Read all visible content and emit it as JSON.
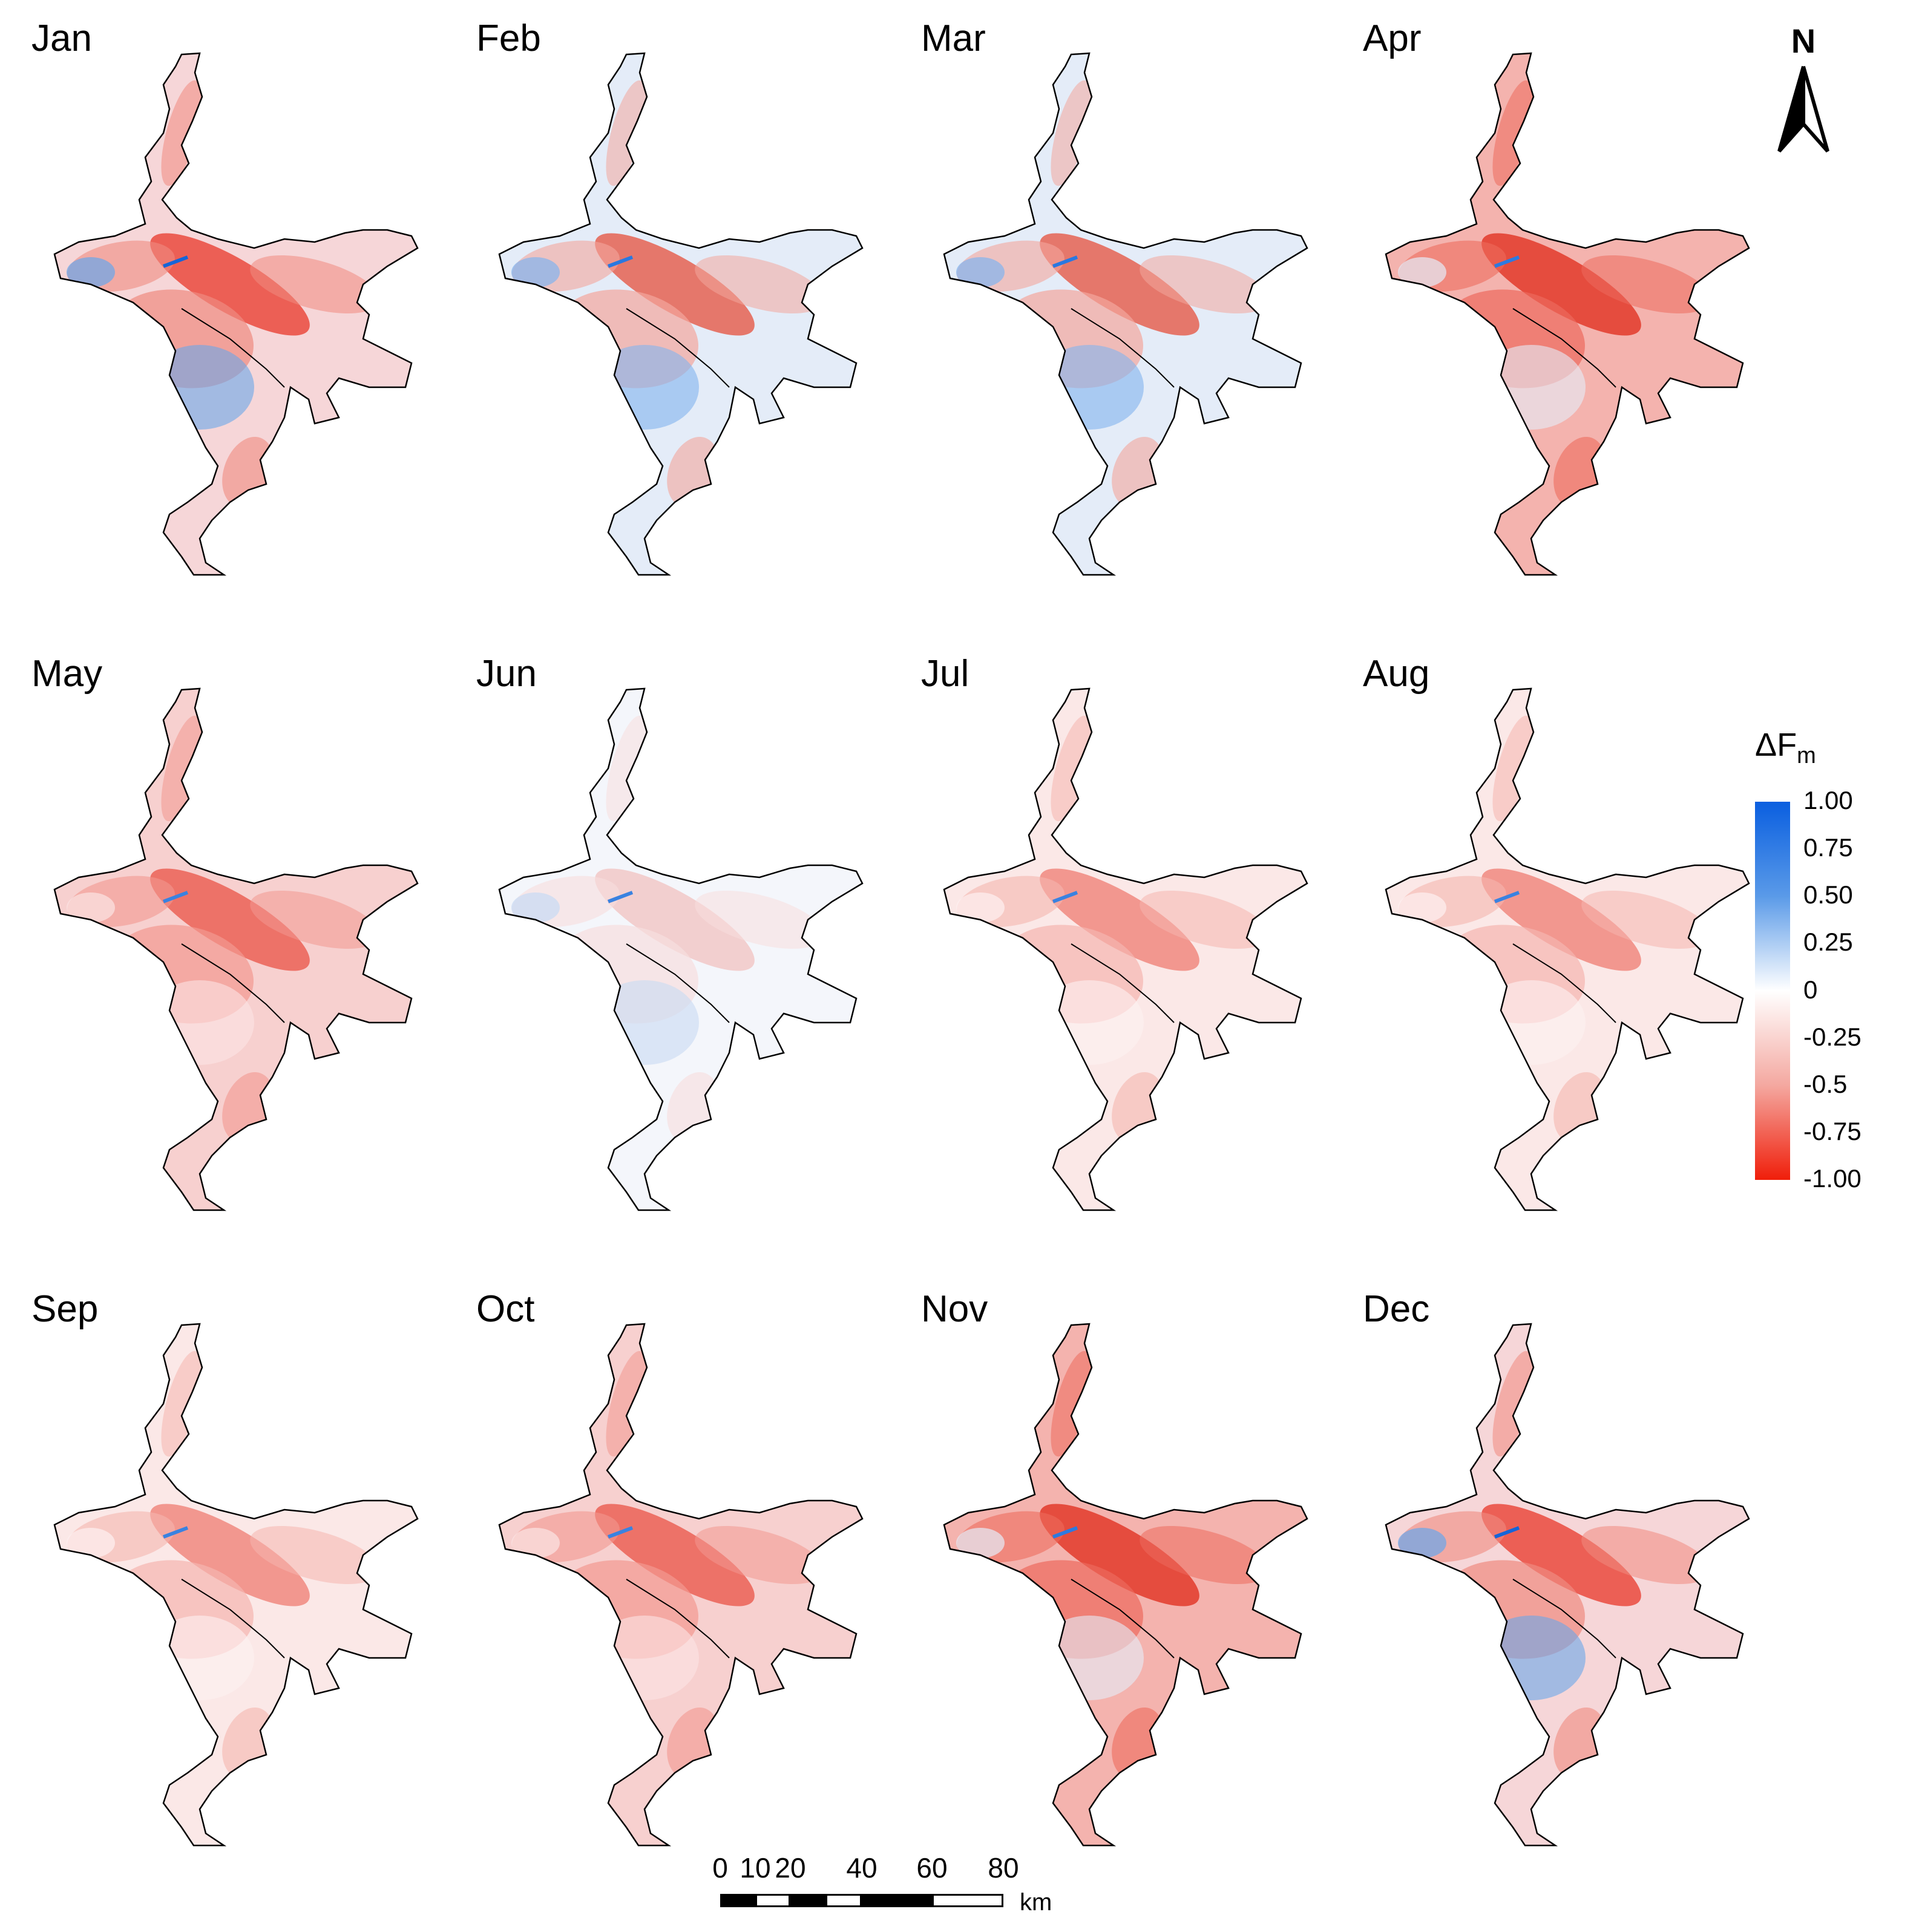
{
  "panels": [
    {
      "label": "Jan",
      "tone": "mixed-red"
    },
    {
      "label": "Feb",
      "tone": "mixed-blue"
    },
    {
      "label": "Mar",
      "tone": "mixed-blue"
    },
    {
      "label": "Apr",
      "tone": "strong-red"
    },
    {
      "label": "May",
      "tone": "red"
    },
    {
      "label": "Jun",
      "tone": "faint"
    },
    {
      "label": "Jul",
      "tone": "light-red"
    },
    {
      "label": "Aug",
      "tone": "light-red"
    },
    {
      "label": "Sep",
      "tone": "light-red"
    },
    {
      "label": "Oct",
      "tone": "red"
    },
    {
      "label": "Nov",
      "tone": "strong-red"
    },
    {
      "label": "Dec",
      "tone": "mixed-red"
    }
  ],
  "north_arrow": {
    "letter": "N"
  },
  "legend": {
    "title": "ΔF",
    "title_sub": "m",
    "ticks": [
      "1.00",
      "0.75",
      "0.50",
      "0.25",
      "0",
      "-0.25",
      "-0.5",
      "-0.75",
      "-1.00"
    ],
    "color_max": "#0a5fe0",
    "color_mid": "#ffffff",
    "color_min": "#f01e0a"
  },
  "scale_bar": {
    "labels": [
      "0",
      "10",
      "20",
      "40",
      "60",
      "80"
    ],
    "unit": "km"
  }
}
